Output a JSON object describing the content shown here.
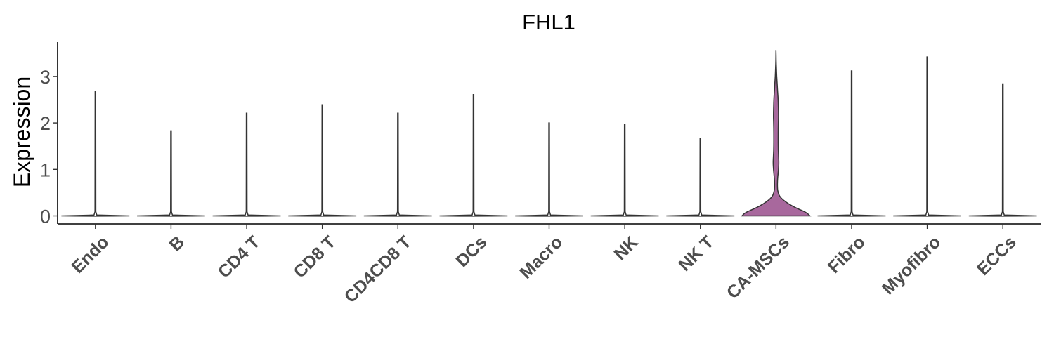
{
  "chart_data": {
    "type": "violin",
    "title": "FHL1",
    "xlabel": "",
    "ylabel": "Expression",
    "ylim": [
      -0.2,
      3.7
    ],
    "yticks": [
      0,
      1,
      2,
      3
    ],
    "grid": false,
    "legend": "none",
    "categories": [
      "Endo",
      "B",
      "CD4 T",
      "CD8 T",
      "CD4CD8 T",
      "DCs",
      "Macro",
      "NK",
      "NK T",
      "CA-MSCs",
      "Fibro",
      "Myofibro",
      "ECCs"
    ],
    "max_values": [
      2.68,
      1.83,
      2.21,
      2.39,
      2.21,
      2.61,
      2.0,
      1.96,
      1.66,
      3.57,
      3.12,
      3.42,
      2.84
    ],
    "highlight": {
      "category": "CA-MSCs",
      "fill": "#a8689d",
      "profile": [
        [
          0.0,
          1.0
        ],
        [
          0.06,
          0.92
        ],
        [
          0.12,
          0.75
        ],
        [
          0.2,
          0.5
        ],
        [
          0.3,
          0.28
        ],
        [
          0.4,
          0.12
        ],
        [
          0.5,
          0.06
        ],
        [
          0.6,
          0.04
        ],
        [
          0.8,
          0.045
        ],
        [
          1.0,
          0.075
        ],
        [
          1.15,
          0.085
        ],
        [
          1.3,
          0.075
        ],
        [
          1.5,
          0.065
        ],
        [
          1.8,
          0.065
        ],
        [
          2.0,
          0.07
        ],
        [
          2.2,
          0.075
        ],
        [
          2.5,
          0.065
        ],
        [
          2.7,
          0.045
        ],
        [
          2.9,
          0.03
        ],
        [
          3.1,
          0.015
        ],
        [
          3.3,
          0.006
        ],
        [
          3.57,
          0.0
        ]
      ]
    },
    "default_fill": "#ffffff",
    "stroke_color": "#333333"
  }
}
